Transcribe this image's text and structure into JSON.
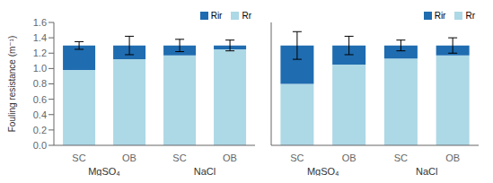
{
  "chart_data": [
    {
      "type": "bar",
      "stacked": true,
      "legend": "upper right",
      "grid": false,
      "ylabel": "Fouling resistance (m⁻¹)",
      "categories": [
        "SC",
        "OB",
        "SC",
        "OB"
      ],
      "groups": [
        "MgSO₄",
        "NaCl"
      ],
      "series": [
        {
          "name": "Rr",
          "color": "#add8e6",
          "values": [
            0.98,
            1.12,
            1.17,
            1.25
          ]
        },
        {
          "name": "Rir",
          "color": "#1f6cb0",
          "values": [
            0.32,
            0.18,
            0.13,
            0.05
          ]
        }
      ],
      "total_errors": [
        0.05,
        0.12,
        0.08,
        0.07
      ],
      "ylim": [
        0,
        1.6
      ],
      "yticks": [
        {
          "value": 0.0,
          "label": "0.0"
        },
        0.2,
        0.4,
        0.6,
        0.8,
        {
          "value": 1.0,
          "label": "1.0"
        },
        1.2,
        1.4,
        1.6
      ]
    },
    {
      "type": "bar",
      "stacked": true,
      "legend": "upper right",
      "grid": false,
      "tick_labels": "x",
      "categories": [
        "SC",
        "OB",
        "SC",
        "OB"
      ],
      "groups": [
        "MgSO₄",
        "NaCl"
      ],
      "series": [
        {
          "name": "Rr",
          "color": "#add8e6",
          "values": [
            0.8,
            1.05,
            1.13,
            1.17
          ]
        },
        {
          "name": "Rir",
          "color": "#1f6cb0",
          "values": [
            0.5,
            0.25,
            0.17,
            0.13
          ]
        }
      ],
      "total_errors": [
        0.18,
        0.12,
        0.07,
        0.1
      ],
      "ylim": [
        0,
        1.6
      ],
      "yticks": [
        0,
        0.2,
        0.4,
        0.6,
        0.8,
        1.0,
        1.2,
        1.4,
        1.6
      ]
    }
  ]
}
